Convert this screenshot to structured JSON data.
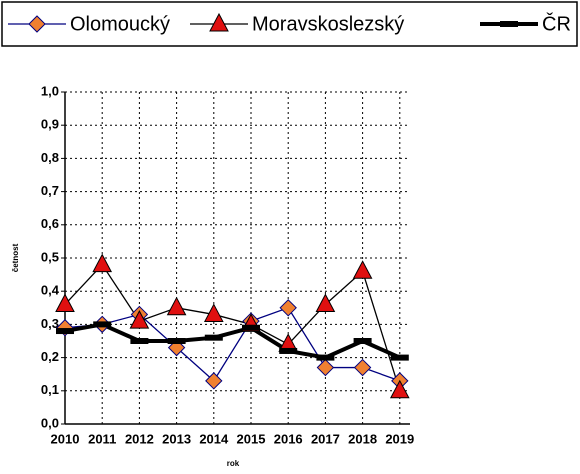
{
  "chart_data": {
    "type": "line",
    "categories": [
      "2010",
      "2011",
      "2012",
      "2013",
      "2014",
      "2015",
      "2016",
      "2017",
      "2018",
      "2019"
    ],
    "series": [
      {
        "name": "Olomoucký",
        "color": "#000080",
        "marker": "diamond",
        "marker_color": "#f08030",
        "values": [
          0.29,
          0.3,
          0.33,
          0.23,
          0.13,
          0.31,
          0.35,
          0.17,
          0.17,
          0.13
        ]
      },
      {
        "name": "Moravskoslezský",
        "color": "#000000",
        "marker": "triangle",
        "marker_color": "#e01010",
        "values": [
          0.36,
          0.48,
          0.31,
          0.35,
          0.33,
          0.3,
          0.24,
          0.36,
          0.46,
          0.1
        ]
      },
      {
        "name": "ČR",
        "color": "#000000",
        "marker": "square",
        "marker_color": "#000000",
        "line_width": 4,
        "values": [
          0.28,
          0.3,
          0.25,
          0.25,
          0.26,
          0.29,
          0.22,
          0.2,
          0.25,
          0.2
        ]
      }
    ],
    "ylim": [
      0,
      1
    ],
    "yticks": [
      {
        "value": 0,
        "label": "0,0"
      },
      {
        "value": 0.1,
        "label": "0,1"
      },
      {
        "value": 0.2,
        "label": "0,2"
      },
      {
        "value": 0.3,
        "label": "0,3"
      },
      {
        "value": 0.4,
        "label": "0,4"
      },
      {
        "value": 0.5,
        "label": "0,5"
      },
      {
        "value": 0.6,
        "label": "0,6"
      },
      {
        "value": 0.7,
        "label": "0,7"
      },
      {
        "value": 0.8,
        "label": "0,8"
      },
      {
        "value": 0.9,
        "label": "0,9"
      },
      {
        "value": 1,
        "label": "1,0"
      }
    ],
    "xlabel": "rok",
    "ylabel": "četnost",
    "grid": true,
    "legend": "top"
  }
}
